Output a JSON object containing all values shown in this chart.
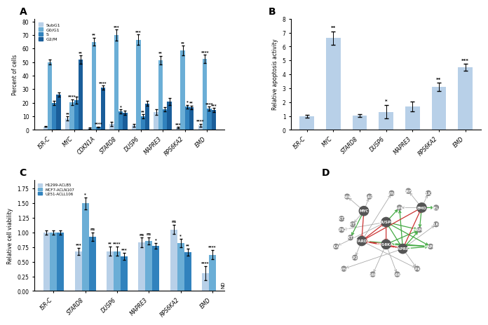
{
  "panel_A": {
    "categories": [
      "ISR-C",
      "MYC",
      "CDKN1A",
      "STARD8",
      "DUSP6",
      "MAPRE3",
      "RPS6KA2",
      "EMD"
    ],
    "subg1": [
      2.5,
      8.5,
      1.0,
      4.5,
      3.5,
      13.0,
      1.5,
      3.5
    ],
    "g0g1": [
      50.0,
      20.5,
      65.0,
      70.0,
      66.5,
      51.5,
      58.5,
      52.5
    ],
    "s": [
      20.0,
      22.0,
      2.0,
      13.5,
      10.0,
      15.0,
      17.0,
      15.5
    ],
    "g2m": [
      26.0,
      52.0,
      31.0,
      12.5,
      19.5,
      21.0,
      16.5,
      14.5
    ],
    "subg1_err": [
      0.5,
      1.5,
      0.5,
      1.5,
      1.0,
      2.0,
      0.5,
      1.0
    ],
    "g0g1_err": [
      2.0,
      2.0,
      3.0,
      4.0,
      4.0,
      3.0,
      3.5,
      3.0
    ],
    "s_err": [
      1.5,
      2.5,
      0.5,
      1.5,
      1.5,
      1.5,
      1.5,
      1.5
    ],
    "g2m_err": [
      1.5,
      3.0,
      1.5,
      1.5,
      2.0,
      2.5,
      1.5,
      1.5
    ],
    "stars_subg1": [
      "",
      "**",
      "",
      "",
      "",
      "",
      "***",
      "****"
    ],
    "stars_g0g1": [
      "",
      "****",
      "**",
      "***",
      "***",
      "**",
      "**",
      "****"
    ],
    "stars_s": [
      "",
      "",
      "****",
      "*",
      "**",
      "",
      "*",
      "****"
    ],
    "stars_g2m": [
      "",
      "**",
      "****",
      "",
      "",
      "",
      "**",
      "***"
    ],
    "ylabel": "Percent of cells",
    "ylim": [
      0,
      82
    ],
    "colors": [
      "#b8d0e8",
      "#6baed6",
      "#3182bd",
      "#1a5e9a"
    ],
    "legend": [
      "SubG1",
      "G0/G1",
      "S",
      "G2/M"
    ]
  },
  "panel_B": {
    "categories": [
      "ISR-C",
      "MYC",
      "STARD8",
      "DUSP6",
      "MAPRE3",
      "RPS6KA2",
      "EMD"
    ],
    "values": [
      1.0,
      6.6,
      1.05,
      1.3,
      1.7,
      3.1,
      4.5
    ],
    "errors": [
      0.1,
      0.5,
      0.1,
      0.5,
      0.35,
      0.3,
      0.25
    ],
    "stars": [
      "",
      "**",
      "",
      "*",
      "",
      "**",
      "***"
    ],
    "ylabel": "Relative apoptosis activity",
    "ylim": [
      0,
      8
    ],
    "color": "#b8d0e8"
  },
  "panel_C": {
    "categories": [
      "ISR-C",
      "STARD8",
      "DUSP6",
      "MAPRE3",
      "RPS6KA2",
      "EMD"
    ],
    "h1299": [
      1.0,
      0.67,
      0.68,
      0.83,
      1.05,
      0.3
    ],
    "mcf7": [
      1.0,
      1.5,
      0.68,
      0.86,
      0.82,
      0.62
    ],
    "u251": [
      1.0,
      0.93,
      0.59,
      0.77,
      0.66,
      null
    ],
    "h1299_err": [
      0.04,
      0.06,
      0.08,
      0.08,
      0.08,
      0.12
    ],
    "mcf7_err": [
      0.04,
      0.1,
      0.08,
      0.06,
      0.07,
      0.08
    ],
    "u251_err": [
      0.04,
      0.07,
      0.06,
      0.05,
      0.06,
      null
    ],
    "stars_h1299": [
      "",
      "***",
      "**",
      "ns",
      "ns",
      "****"
    ],
    "stars_mcf7": [
      "",
      "*",
      "****",
      "ns",
      "*",
      "****"
    ],
    "stars_u251": [
      "",
      "ns",
      "***",
      "*",
      "**",
      ""
    ],
    "ylabel": "Relative cell viability",
    "ylim": [
      0,
      1.9
    ],
    "colors": [
      "#b8d0e8",
      "#6baed6",
      "#3182bd"
    ],
    "legend": [
      "H1299-ACLB5",
      "MCF7-ACLN107",
      "U251-ACLL106"
    ]
  },
  "panel_D": {
    "nodes": [
      "EMD",
      "STARD8",
      "RPS6KA2",
      "MAPRE3",
      "DUSP6",
      "MYC",
      "NIN",
      "MAPK7",
      "MAPK3",
      "MAPK1",
      "MAPK10",
      "RPS6KA3",
      "RPS6KA1",
      "MAP2K1",
      "MAPK14",
      "MAPKAPK2",
      "YWHAZ",
      "RELA",
      "AKT3",
      "AKT1",
      "AKT2",
      "STARD10",
      "YWHAB",
      "SRF",
      "ELK1",
      "ELK4"
    ],
    "node_sizes": [
      800,
      800,
      800,
      800,
      800,
      600,
      300,
      300,
      300,
      300,
      300,
      300,
      300,
      300,
      300,
      300,
      300,
      300,
      300,
      300,
      300,
      300,
      300,
      300,
      300,
      300
    ],
    "node_colors_dark": [
      "#555555",
      "#555555",
      "#555555",
      "#555555",
      "#555555"
    ],
    "green_edges": [
      [
        "MAPRE3",
        "MAPK1"
      ],
      [
        "MAPRE3",
        "MAPK3"
      ],
      [
        "MAPRE3",
        "MAPK7"
      ],
      [
        "RPS6KA2",
        "MAPK1"
      ],
      [
        "RPS6KA2",
        "MAPK3"
      ],
      [
        "DUSP6",
        "MAPK1"
      ],
      [
        "DUSP6",
        "MAPK3"
      ],
      [
        "DUSP6",
        "MAPK7"
      ],
      [
        "STARD8",
        "MAPK1"
      ],
      [
        "EMD",
        "RELA"
      ],
      [
        "MYC",
        "AKT1"
      ]
    ],
    "red_edges": [
      [
        "MAPRE3",
        "RPS6KA2"
      ],
      [
        "MAPRE3",
        "STARD8"
      ],
      [
        "RPS6KA2",
        "STARD8"
      ],
      [
        "EMD",
        "STARD8"
      ],
      [
        "DUSP6",
        "RPS6KA2"
      ],
      [
        "STARD8",
        "DUSP6"
      ]
    ]
  }
}
